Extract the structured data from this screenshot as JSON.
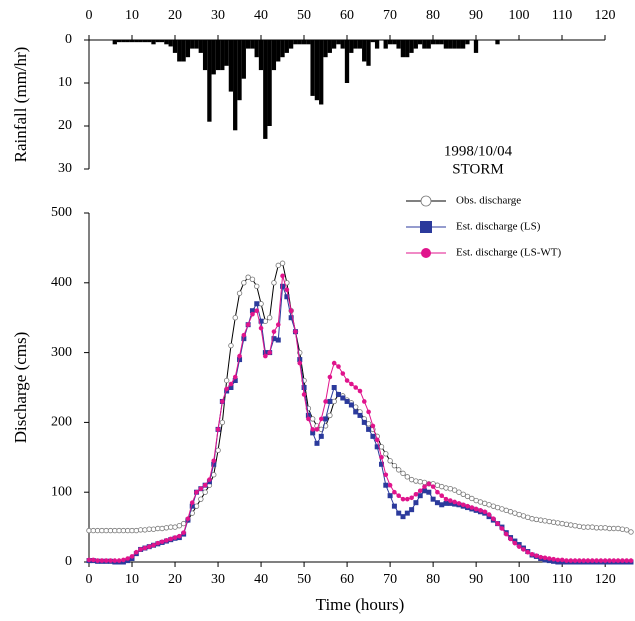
{
  "chart_data": [
    {
      "type": "bar",
      "ylabel": "Rainfall (mm/hr)",
      "color": "#000000",
      "xlim": [
        0,
        120
      ],
      "xticks": [
        0,
        10,
        20,
        30,
        40,
        50,
        60,
        70,
        80,
        90,
        100,
        110,
        120
      ],
      "x_axis_position": "top",
      "ylim": [
        0,
        30
      ],
      "yticks": [
        0,
        10,
        20,
        30
      ],
      "y_inverted": true,
      "annotations": [
        "1998/10/04",
        "STORM"
      ],
      "x": [
        6,
        7,
        8,
        9,
        10,
        11,
        12,
        13,
        14,
        15,
        16,
        17,
        18,
        19,
        20,
        21,
        22,
        23,
        24,
        25,
        26,
        27,
        28,
        29,
        30,
        31,
        32,
        33,
        34,
        35,
        36,
        37,
        38,
        39,
        40,
        41,
        42,
        43,
        44,
        45,
        46,
        47,
        48,
        49,
        50,
        51,
        52,
        53,
        54,
        55,
        56,
        57,
        58,
        59,
        60,
        61,
        62,
        63,
        64,
        65,
        66,
        67,
        68,
        69,
        70,
        71,
        72,
        73,
        74,
        75,
        76,
        77,
        78,
        79,
        80,
        81,
        82,
        83,
        84,
        85,
        86,
        87,
        88,
        89,
        90,
        91,
        92,
        93,
        94,
        95
      ],
      "values": [
        1,
        0.5,
        0.5,
        0.5,
        0.5,
        0.5,
        0.5,
        0.5,
        0.5,
        1,
        0.5,
        0.5,
        1,
        1.5,
        3,
        5,
        5,
        4,
        2,
        2,
        3,
        7,
        19,
        8,
        7,
        7,
        6,
        12,
        21,
        14,
        9,
        2,
        2,
        4,
        7,
        23,
        20,
        7,
        5,
        4,
        3,
        2,
        1,
        1,
        1,
        1,
        13,
        14,
        15,
        4,
        3,
        2,
        1,
        2,
        10,
        3,
        2,
        2,
        5,
        6,
        0.5,
        2,
        0,
        2,
        1,
        1,
        2,
        4,
        4,
        3,
        2,
        1,
        2,
        2,
        1,
        1,
        1,
        2,
        2,
        2,
        2,
        2,
        1,
        0,
        3,
        0,
        0,
        0,
        0,
        1
      ]
    },
    {
      "type": "line",
      "xlabel": "Time (hours)",
      "ylabel": "Discharge (cms)",
      "xlim": [
        0,
        126
      ],
      "xticks": [
        0,
        10,
        20,
        30,
        40,
        50,
        60,
        70,
        80,
        90,
        100,
        110,
        120
      ],
      "ylim": [
        0,
        500
      ],
      "yticks": [
        0,
        100,
        200,
        300,
        400,
        500
      ],
      "legend": "upper right",
      "x": [
        0,
        1,
        2,
        3,
        4,
        5,
        6,
        7,
        8,
        9,
        10,
        11,
        12,
        13,
        14,
        15,
        16,
        17,
        18,
        19,
        20,
        21,
        22,
        23,
        24,
        25,
        26,
        27,
        28,
        29,
        30,
        31,
        32,
        33,
        34,
        35,
        36,
        37,
        38,
        39,
        40,
        41,
        42,
        43,
        44,
        45,
        46,
        47,
        48,
        49,
        50,
        51,
        52,
        53,
        54,
        55,
        56,
        57,
        58,
        59,
        60,
        61,
        62,
        63,
        64,
        65,
        66,
        67,
        68,
        69,
        70,
        71,
        72,
        73,
        74,
        75,
        76,
        77,
        78,
        79,
        80,
        81,
        82,
        83,
        84,
        85,
        86,
        87,
        88,
        89,
        90,
        91,
        92,
        93,
        94,
        95,
        96,
        97,
        98,
        99,
        100,
        101,
        102,
        103,
        104,
        105,
        106,
        107,
        108,
        109,
        110,
        111,
        112,
        113,
        114,
        115,
        116,
        117,
        118,
        119,
        120,
        121,
        122,
        123,
        124,
        125,
        126
      ],
      "series": [
        {
          "name": "Obs. discharge",
          "color": "#000000",
          "marker": "circle-open",
          "values": [
            45,
            45,
            45,
            45,
            45,
            45,
            45,
            45,
            45,
            45,
            45,
            45,
            46,
            46,
            47,
            47,
            48,
            48,
            49,
            50,
            50,
            52,
            55,
            60,
            70,
            80,
            90,
            100,
            110,
            125,
            160,
            200,
            260,
            310,
            350,
            385,
            400,
            408,
            405,
            395,
            370,
            345,
            350,
            400,
            425,
            428,
            400,
            360,
            330,
            300,
            260,
            220,
            205,
            195,
            190,
            195,
            210,
            230,
            240,
            238,
            232,
            228,
            222,
            215,
            205,
            198,
            190,
            180,
            165,
            155,
            145,
            138,
            132,
            127,
            122,
            118,
            116,
            115,
            114,
            112,
            112,
            110,
            108,
            106,
            105,
            103,
            100,
            97,
            94,
            91,
            88,
            86,
            84,
            82,
            80,
            78,
            76,
            74,
            72,
            70,
            68,
            66,
            64,
            62,
            61,
            60,
            59,
            58,
            57,
            56,
            55,
            54,
            53,
            52,
            51,
            50,
            50,
            50,
            49,
            49,
            49,
            48,
            48,
            48,
            47,
            46,
            43
          ]
        },
        {
          "name": "Est. discharge (LS)",
          "color": "#2b3a9c",
          "marker": "square",
          "values": [
            2,
            2,
            1,
            1,
            1,
            1,
            0,
            0,
            0,
            2,
            5,
            12,
            18,
            20,
            22,
            24,
            26,
            28,
            30,
            32,
            34,
            35,
            40,
            60,
            80,
            100,
            105,
            110,
            115,
            140,
            190,
            230,
            245,
            250,
            260,
            290,
            320,
            340,
            360,
            370,
            345,
            300,
            300,
            320,
            318,
            395,
            380,
            350,
            330,
            290,
            250,
            210,
            185,
            170,
            180,
            205,
            230,
            250,
            240,
            235,
            230,
            225,
            215,
            210,
            200,
            190,
            180,
            165,
            140,
            110,
            95,
            80,
            70,
            65,
            70,
            75,
            85,
            95,
            102,
            100,
            90,
            85,
            82,
            84,
            84,
            83,
            82,
            80,
            78,
            76,
            74,
            72,
            70,
            65,
            60,
            55,
            50,
            42,
            35,
            30,
            25,
            20,
            15,
            10,
            8,
            5,
            3,
            2,
            1,
            0,
            0,
            0,
            0,
            0,
            0,
            0,
            0,
            0,
            0,
            0,
            0,
            0,
            0,
            0,
            0,
            0,
            0
          ]
        },
        {
          "name": "Est. discharge (LS-WT)",
          "color": "#e0148c",
          "marker": "circle",
          "values": [
            3,
            3,
            2,
            2,
            2,
            2,
            2,
            2,
            3,
            5,
            8,
            14,
            18,
            20,
            22,
            24,
            27,
            29,
            31,
            33,
            35,
            37,
            42,
            62,
            85,
            100,
            105,
            110,
            118,
            145,
            190,
            230,
            248,
            255,
            265,
            295,
            325,
            340,
            355,
            360,
            335,
            295,
            300,
            330,
            340,
            410,
            390,
            360,
            330,
            285,
            240,
            205,
            190,
            190,
            205,
            230,
            265,
            285,
            280,
            270,
            260,
            255,
            250,
            245,
            230,
            215,
            195,
            175,
            150,
            125,
            110,
            100,
            95,
            90,
            90,
            92,
            97,
            102,
            108,
            112,
            108,
            100,
            95,
            90,
            88,
            86,
            84,
            82,
            80,
            78,
            76,
            74,
            72,
            68,
            62,
            55,
            48,
            40,
            33,
            27,
            22,
            18,
            14,
            11,
            9,
            7,
            6,
            5,
            4,
            3,
            3,
            2,
            2,
            2,
            2,
            2,
            2,
            2,
            2,
            2,
            2,
            2,
            2,
            2,
            2,
            2,
            2
          ]
        }
      ]
    }
  ]
}
